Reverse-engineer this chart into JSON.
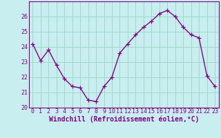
{
  "x": [
    0,
    1,
    2,
    3,
    4,
    5,
    6,
    7,
    8,
    9,
    10,
    11,
    12,
    13,
    14,
    15,
    16,
    17,
    18,
    19,
    20,
    21,
    22,
    23
  ],
  "y": [
    24.2,
    23.1,
    23.8,
    22.8,
    21.9,
    21.4,
    21.3,
    20.5,
    20.4,
    21.4,
    22.0,
    23.6,
    24.2,
    24.8,
    25.3,
    25.7,
    26.2,
    26.4,
    26.0,
    25.3,
    24.8,
    24.6,
    22.1,
    21.4
  ],
  "color": "#800080",
  "bg_color": "#c8eef0",
  "grid_color": "#a0d8c8",
  "xlabel": "Windchill (Refroidissement éolien,°C)",
  "xlabel_color": "#800080",
  "tick_color": "#800080",
  "ylim": [
    20,
    27
  ],
  "yticks": [
    20,
    21,
    22,
    23,
    24,
    25,
    26
  ],
  "xticks": [
    0,
    1,
    2,
    3,
    4,
    5,
    6,
    7,
    8,
    9,
    10,
    11,
    12,
    13,
    14,
    15,
    16,
    17,
    18,
    19,
    20,
    21,
    22,
    23
  ],
  "marker": "+",
  "marker_size": 4,
  "linewidth": 1.0,
  "xlabel_fontsize": 7,
  "tick_fontsize": 6,
  "font_family": "monospace"
}
